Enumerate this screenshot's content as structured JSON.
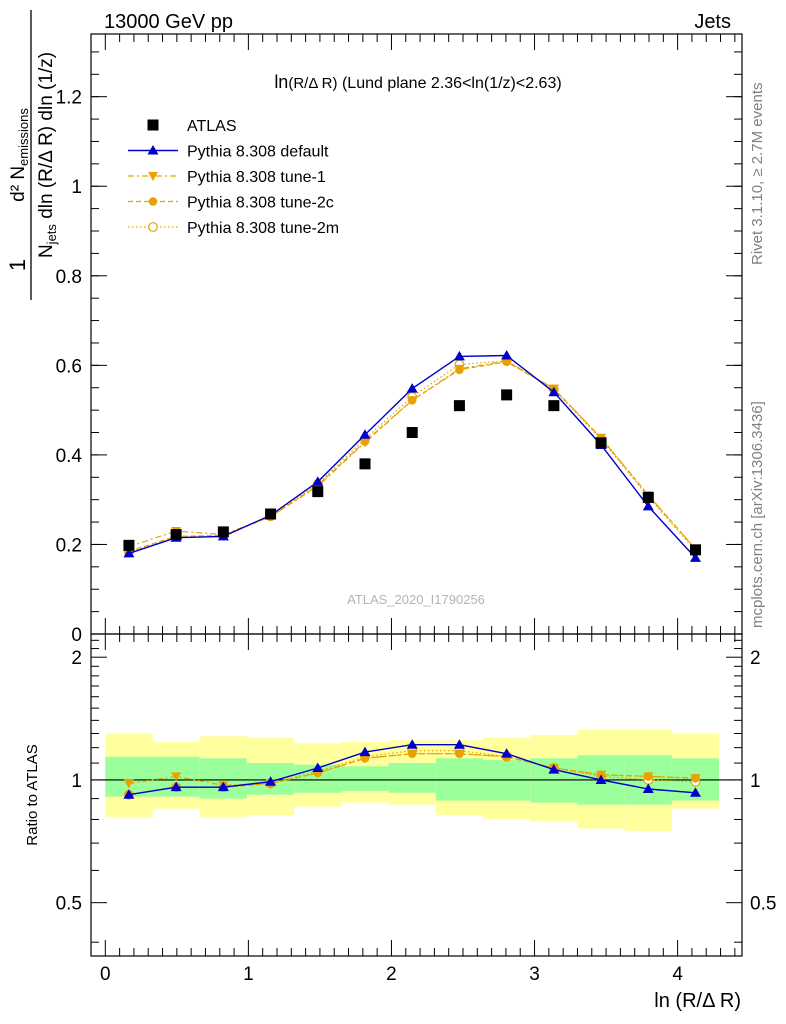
{
  "header": {
    "left": "13000 GeV pp",
    "right": "Jets",
    "analysis_id": "ATLAS_2020_I1790256",
    "side_rivet": "Rivet 3.1.10, ≥ 2.7M events",
    "side_mcplots": "mcplots.cern.ch [arXiv:1306.3436]"
  },
  "chart_data": [
    {
      "type": "scatter",
      "panel": "main",
      "title_fn": "ln",
      "title_arg": "(R/Δ R)",
      "title_rest": " (Lund plane 2.36<ln(1/z)<2.63)",
      "ylabel_num": "d² N",
      "ylabel_num_sub": "emissions",
      "ylabel_den": "N",
      "ylabel_den_sub": "jets",
      "ylabel_den_rest": " dln (R/Δ R) dln (1/z)",
      "ylabel_one": "1",
      "xlim": [
        -0.1,
        4.45
      ],
      "ylim": [
        0,
        1.34
      ],
      "yticks": [
        0,
        0.2,
        0.4,
        0.6,
        0.8,
        1,
        1.2
      ],
      "ytick_labels": [
        "0",
        "0.2",
        "0.4",
        "0.6",
        "0.8",
        "1",
        "1.2"
      ],
      "legend_position": "top-left",
      "x": [
        0.165,
        0.495,
        0.825,
        1.155,
        1.485,
        1.815,
        2.145,
        2.475,
        2.805,
        3.135,
        3.465,
        3.795,
        4.125
      ],
      "series": [
        {
          "name": "ATLAS",
          "style": "data",
          "color": "#000000",
          "values": [
            0.198,
            0.222,
            0.228,
            0.268,
            0.318,
            0.38,
            0.45,
            0.51,
            0.534,
            0.51,
            0.427,
            0.305,
            0.188
          ]
        },
        {
          "name": "Pythia 8.308 default",
          "style": "default",
          "color": "#0000cc",
          "values": [
            0.18,
            0.215,
            0.218,
            0.265,
            0.34,
            0.445,
            0.548,
            0.62,
            0.622,
            0.54,
            0.422,
            0.285,
            0.17
          ]
        },
        {
          "name": "Pythia 8.308 tune-1",
          "style": "tune1",
          "color": "#e8a200",
          "values": [
            0.195,
            0.23,
            0.222,
            0.262,
            0.33,
            0.428,
            0.522,
            0.592,
            0.61,
            0.548,
            0.438,
            0.31,
            0.19
          ]
        },
        {
          "name": "Pythia 8.308 tune-2c",
          "style": "tune2c",
          "color": "#e8a200",
          "values": [
            0.185,
            0.218,
            0.22,
            0.262,
            0.332,
            0.43,
            0.522,
            0.59,
            0.608,
            0.548,
            0.438,
            0.31,
            0.19
          ]
        },
        {
          "name": "Pythia 8.308 tune-2m",
          "style": "tune2m",
          "color": "#e8a200",
          "values": [
            0.183,
            0.218,
            0.22,
            0.263,
            0.335,
            0.436,
            0.53,
            0.602,
            0.61,
            0.546,
            0.435,
            0.306,
            0.186
          ]
        }
      ]
    },
    {
      "type": "scatter",
      "panel": "ratio",
      "ylabel": "Ratio to ATLAS",
      "xlabel": "ln (R/Δ R)",
      "xlim": [
        -0.1,
        4.45
      ],
      "ylim": [
        0.37,
        2.28
      ],
      "ylog": true,
      "yticks": [
        0.5,
        1,
        2
      ],
      "ytick_labels": [
        "0.5",
        "1",
        "2"
      ],
      "xticks": [
        0,
        1,
        2,
        3,
        4
      ],
      "xtick_labels": [
        "0",
        "1",
        "2",
        "3",
        "4"
      ],
      "x": [
        0.165,
        0.495,
        0.825,
        1.155,
        1.485,
        1.815,
        2.145,
        2.475,
        2.805,
        3.135,
        3.465,
        3.795,
        4.125
      ],
      "bin_edges": [
        0.0,
        0.33,
        0.66,
        0.99,
        1.32,
        1.65,
        1.98,
        2.31,
        2.64,
        2.97,
        3.3,
        3.63,
        3.96,
        4.29
      ],
      "band_stat": [
        [
          0.91,
          1.14
        ],
        [
          0.91,
          1.14
        ],
        [
          0.9,
          1.13
        ],
        [
          0.92,
          1.1
        ],
        [
          0.93,
          1.09
        ],
        [
          0.94,
          1.08
        ],
        [
          0.93,
          1.1
        ],
        [
          0.89,
          1.13
        ],
        [
          0.89,
          1.12
        ],
        [
          0.88,
          1.13
        ],
        [
          0.87,
          1.15
        ],
        [
          0.87,
          1.15
        ],
        [
          0.89,
          1.13
        ]
      ],
      "band_total": [
        [
          0.81,
          1.3
        ],
        [
          0.85,
          1.24
        ],
        [
          0.81,
          1.28
        ],
        [
          0.82,
          1.27
        ],
        [
          0.86,
          1.23
        ],
        [
          0.88,
          1.24
        ],
        [
          0.87,
          1.25
        ],
        [
          0.82,
          1.25
        ],
        [
          0.8,
          1.27
        ],
        [
          0.79,
          1.29
        ],
        [
          0.76,
          1.33
        ],
        [
          0.75,
          1.33
        ],
        [
          0.85,
          1.3
        ]
      ],
      "series": [
        {
          "name": "Pythia 8.308 default",
          "style": "default",
          "color": "#0000cc",
          "values": [
            0.92,
            0.96,
            0.96,
            0.99,
            1.07,
            1.17,
            1.22,
            1.22,
            1.16,
            1.06,
            1.0,
            0.95,
            0.93
          ]
        },
        {
          "name": "Pythia 8.308 tune-1",
          "style": "tune1",
          "color": "#e8a200",
          "values": [
            0.98,
            1.02,
            0.97,
            0.98,
            1.04,
            1.13,
            1.16,
            1.16,
            1.14,
            1.07,
            1.03,
            1.02,
            1.01
          ]
        },
        {
          "name": "Pythia 8.308 tune-2c",
          "style": "tune2c",
          "color": "#e8a200",
          "values": [
            0.92,
            0.96,
            0.96,
            0.98,
            1.04,
            1.13,
            1.16,
            1.16,
            1.14,
            1.07,
            1.03,
            1.02,
            1.01
          ]
        },
        {
          "name": "Pythia 8.308 tune-2m",
          "style": "tune2m",
          "color": "#e8a200",
          "values": [
            0.92,
            0.96,
            0.96,
            0.98,
            1.05,
            1.14,
            1.18,
            1.18,
            1.14,
            1.07,
            1.02,
            1.0,
            0.99
          ]
        }
      ]
    }
  ]
}
